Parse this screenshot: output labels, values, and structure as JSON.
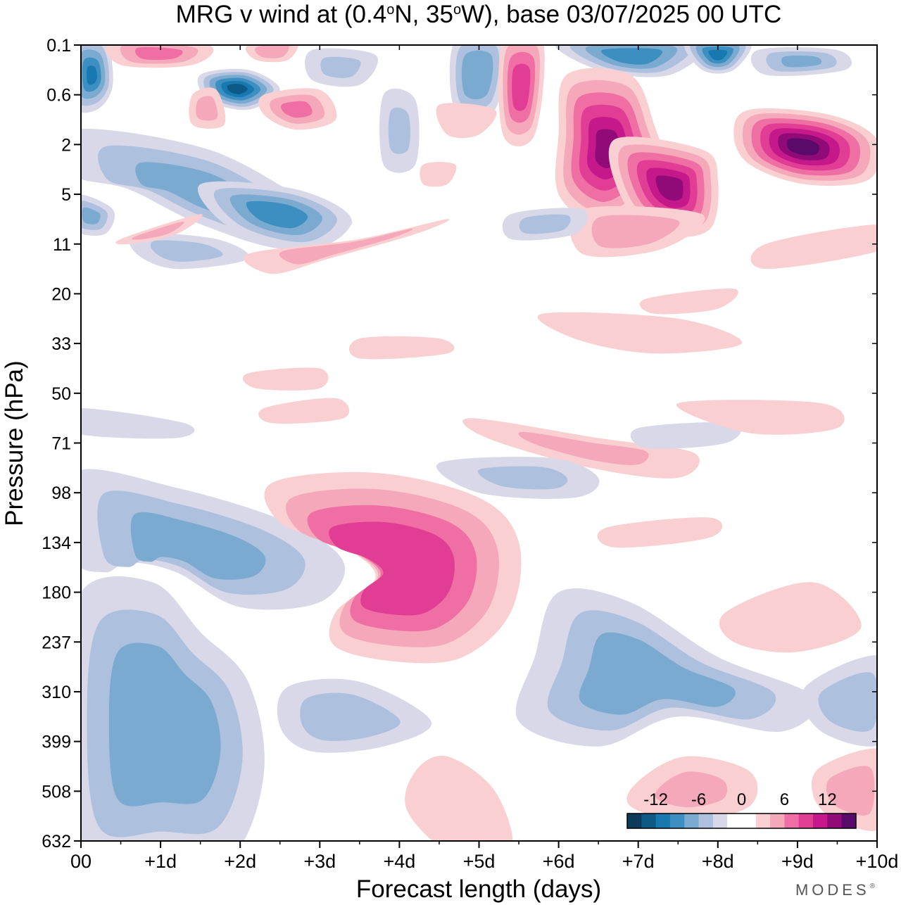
{
  "chart_data": {
    "type": "heatmap",
    "title_parts": {
      "prefix": "MRG v wind at (0.4",
      "deg1": "o",
      "mid": "N, 35",
      "deg2": "o",
      "suffix": "W),  base 03/07/2025  00 UTC"
    },
    "xlabel": "Forecast length (days)",
    "ylabel": "Pressure (hPa)",
    "x_ticks": [
      "00",
      "+1d",
      "+2d",
      "+3d",
      "+4d",
      "+5d",
      "+6d",
      "+7d",
      "+8d",
      "+9d",
      "+10d"
    ],
    "x_range": [
      0,
      10
    ],
    "y_ticks": [
      "0.1",
      "0.6",
      "2",
      "5",
      "11",
      "20",
      "33",
      "50",
      "71",
      "98",
      "134",
      "180",
      "237",
      "310",
      "399",
      "508",
      "632"
    ],
    "y_axis_inverted": true,
    "colorbar": {
      "placement": "bottom-right",
      "labels": [
        "-12",
        "-6",
        "0",
        "6",
        "12"
      ],
      "levels": [
        -16,
        -14,
        -12,
        -10,
        -8,
        -6,
        -4,
        -2,
        0,
        2,
        4,
        6,
        8,
        10,
        12,
        14,
        16
      ],
      "colors": [
        "#0b3a5a",
        "#0d5a86",
        "#1879b0",
        "#3c8fc0",
        "#7aaad0",
        "#adc0de",
        "#d8d8e8",
        "#ffffff",
        "#ffffff",
        "#f9cfd1",
        "#f5a8ba",
        "#ef6ea3",
        "#e23d94",
        "#c5188a",
        "#900a78",
        "#5a0a6b"
      ]
    },
    "features": [
      {
        "kind": "min",
        "label": "negative v anomaly",
        "day": 0.1,
        "level": "0.6",
        "value": -14
      },
      {
        "kind": "min",
        "label": "negative v anomaly",
        "day": 2.0,
        "level": "0.6",
        "value": -16
      },
      {
        "kind": "max",
        "label": "positive v anomaly",
        "day": 6.5,
        "level": "1",
        "value": 14
      },
      {
        "kind": "max",
        "label": "positive v anomaly",
        "day": 9.3,
        "level": "2.5",
        "value": 16
      },
      {
        "kind": "max",
        "label": "positive v anomaly",
        "day": 7.6,
        "level": "3",
        "value": 14
      },
      {
        "kind": "min",
        "label": "negative v anomaly",
        "day": 2.0,
        "level": "8",
        "value": -8
      },
      {
        "kind": "min",
        "label": "negative v anomaly",
        "day": 1.5,
        "level": "134",
        "value": -8
      },
      {
        "kind": "max",
        "label": "positive v anomaly",
        "day": 4.4,
        "level": "180",
        "value": 10
      },
      {
        "kind": "min",
        "label": "negative v anomaly",
        "day": 0.8,
        "level": "450",
        "value": -8
      },
      {
        "kind": "min",
        "label": "negative v anomaly",
        "day": 6.3,
        "level": "330",
        "value": -8
      },
      {
        "kind": "max",
        "label": "positive v anomaly",
        "day": 7.5,
        "level": "470",
        "value": 4
      },
      {
        "kind": "max",
        "label": "positive v anomaly",
        "day": 9.8,
        "level": "460",
        "value": 6
      }
    ]
  },
  "branding": {
    "logo_text": "MODES",
    "logo_mark": "®"
  }
}
